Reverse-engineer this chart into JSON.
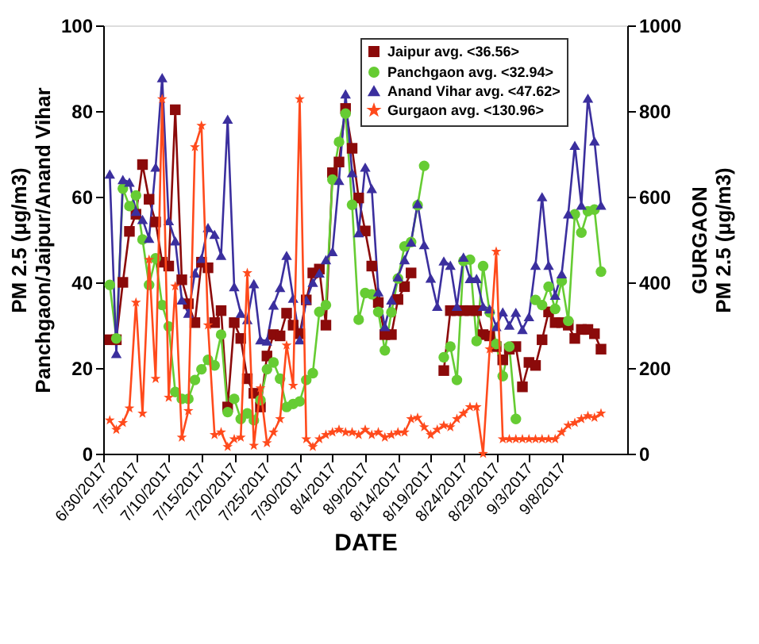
{
  "chart_data": {
    "type": "line",
    "xlabel": "DATE",
    "ylabel": "PM 2.5 (μg/m3)\nPanchgaon/Jaipur/Anand Vihar",
    "y2label": "GURGAON\nPM 2.5 (μg/m3)",
    "x": [
      "2017-07-01",
      "2017-07-02",
      "2017-07-03",
      "2017-07-04",
      "2017-07-05",
      "2017-07-06",
      "2017-07-07",
      "2017-07-08",
      "2017-07-09",
      "2017-07-10",
      "2017-07-11",
      "2017-07-12",
      "2017-07-13",
      "2017-07-14",
      "2017-07-15",
      "2017-07-16",
      "2017-07-17",
      "2017-07-18",
      "2017-07-19",
      "2017-07-20",
      "2017-07-21",
      "2017-07-22",
      "2017-07-23",
      "2017-07-24",
      "2017-07-25",
      "2017-07-26",
      "2017-07-27",
      "2017-07-28",
      "2017-07-29",
      "2017-07-30",
      "2017-07-31",
      "2017-08-01",
      "2017-08-02",
      "2017-08-03",
      "2017-08-04",
      "2017-08-05",
      "2017-08-06",
      "2017-08-07",
      "2017-08-08",
      "2017-08-09",
      "2017-08-10",
      "2017-08-11",
      "2017-08-12",
      "2017-08-13",
      "2017-08-14",
      "2017-08-15",
      "2017-08-16",
      "2017-08-17",
      "2017-08-18",
      "2017-08-19",
      "2017-08-20",
      "2017-08-21",
      "2017-08-22",
      "2017-08-23",
      "2017-08-24",
      "2017-08-25",
      "2017-08-26",
      "2017-08-27",
      "2017-08-28",
      "2017-08-29",
      "2017-08-30",
      "2017-08-31",
      "2017-09-01",
      "2017-09-02",
      "2017-09-03",
      "2017-09-04",
      "2017-09-05",
      "2017-09-06",
      "2017-09-07",
      "2017-09-08",
      "2017-09-09",
      "2017-09-10",
      "2017-09-11",
      "2017-09-12",
      "2017-09-13",
      "2017-09-14"
    ],
    "series": [
      {
        "name": "Jaipur avg. <36.56>",
        "color": "#8b0a0a",
        "marker": "square",
        "values": [
          26.6,
          26.6,
          40,
          51.9,
          55.9,
          67.5,
          59.4,
          54.1,
          44.7,
          43.8,
          80.3,
          40.6,
          35,
          30.6,
          44.7,
          43.4,
          30.6,
          33.4,
          10.9,
          30.6,
          26.9,
          17.5,
          14.1,
          10.9,
          22.8,
          27.8,
          27.5,
          32.8,
          30,
          28,
          35.9,
          42.2,
          43.1,
          30,
          65.6,
          68.1,
          80.6,
          71.3,
          59.7,
          52,
          43.8,
          35.3,
          27.8,
          27.8,
          36,
          39,
          42.2,
          null,
          null,
          null,
          null,
          19.4,
          33.4,
          33.4,
          33.4,
          33.4,
          33.4,
          27.8,
          27.5,
          25,
          21.9,
          24.4,
          25,
          15.6,
          21.3,
          20.6,
          26.6,
          33.1,
          30.6,
          30.6,
          30,
          26.9,
          29,
          29,
          28,
          24.4
        ]
      },
      {
        "name": "Panchgaon avg. <32.94>",
        "color": "#66cc33",
        "marker": "circle",
        "values": [
          39.4,
          26.9,
          61.9,
          57.8,
          60.3,
          50,
          39.4,
          45.6,
          34.7,
          29.7,
          14.4,
          12.8,
          12.8,
          17.2,
          19.7,
          21.9,
          20.6,
          27.8,
          9.7,
          12.8,
          8.1,
          9.4,
          7.8,
          12.5,
          19.7,
          21.3,
          17.5,
          10.9,
          11.6,
          12.2,
          17.2,
          18.8,
          33.1,
          34.7,
          64,
          72.8,
          79.4,
          58.1,
          31.3,
          37.5,
          37.2,
          33.1,
          24.1,
          33,
          40.9,
          48.4,
          49.4,
          58,
          67.2,
          null,
          null,
          22.5,
          25,
          17.2,
          45,
          45.3,
          26.3,
          43.8,
          33,
          25.6,
          18.1,
          25,
          8.1,
          null,
          null,
          35.9,
          34.7,
          39,
          33.8,
          40.3,
          31,
          55.9,
          51.6,
          56.6,
          57,
          42.5
        ]
      },
      {
        "name": "Anand Vihar avg. <47.62>",
        "color": "#3b2f9e",
        "marker": "triangle",
        "values": [
          65.3,
          23.4,
          64,
          63.4,
          56.6,
          54.7,
          50.3,
          66.9,
          87.8,
          54.4,
          49.7,
          35.9,
          32.8,
          42.2,
          45.6,
          52.8,
          51.2,
          46.3,
          78.1,
          39,
          32.8,
          31.3,
          39.7,
          26.6,
          26.3,
          34.7,
          38.8,
          46.3,
          36.3,
          26.6,
          35.9,
          40,
          42.2,
          45.3,
          47.2,
          63.8,
          84,
          65.6,
          51.6,
          66.9,
          61.9,
          37.8,
          29.7,
          35.9,
          41.3,
          45.3,
          49.4,
          58.4,
          48.8,
          41,
          34.4,
          45,
          44,
          34.4,
          45.9,
          40.9,
          40.9,
          34.4,
          33.8,
          29.7,
          33.1,
          30,
          33,
          29,
          32,
          44,
          60,
          44,
          37,
          42,
          56,
          72,
          58,
          83,
          73,
          58
        ]
      },
      {
        "name": "Gurgaon avg. <130.96>",
        "color": "#ff4a1c",
        "marker": "star",
        "axis": "y2",
        "values": [
          78,
          56,
          72,
          106,
          353,
          94,
          453,
          175,
          828,
          131,
          391,
          38,
          100,
          716,
          766,
          300,
          44,
          50,
          16,
          34,
          38,
          422,
          19,
          153,
          25,
          50,
          81,
          253,
          159,
          828,
          34,
          16,
          34,
          44,
          50,
          56,
          50,
          50,
          44,
          56,
          44,
          50,
          38,
          44,
          50,
          50,
          81,
          84,
          62,
          44,
          56,
          66,
          62,
          81,
          94,
          109,
          109,
          0,
          244,
          472,
          34,
          34,
          34,
          34,
          34,
          34,
          34,
          34,
          34,
          50,
          66,
          72,
          81,
          88,
          84,
          94
        ]
      }
    ],
    "xlim": [
      "2017-06-30",
      "2017-09-18"
    ],
    "xticks": [
      {
        "value": "2017-06-30",
        "label": "6/30/2017"
      },
      {
        "value": "2017-07-05",
        "label": "7/5/2017"
      },
      {
        "value": "2017-07-10",
        "label": "7/10/2017"
      },
      {
        "value": "2017-07-15",
        "label": "7/15/2017"
      },
      {
        "value": "2017-07-20",
        "label": "7/20/2017"
      },
      {
        "value": "2017-07-25",
        "label": "7/25/2017"
      },
      {
        "value": "2017-07-30",
        "label": "7/30/2017"
      },
      {
        "value": "2017-08-04",
        "label": "8/4/2017"
      },
      {
        "value": "2017-08-09",
        "label": "8/9/2017"
      },
      {
        "value": "2017-08-14",
        "label": "8/14/2017"
      },
      {
        "value": "2017-08-19",
        "label": "8/19/2017"
      },
      {
        "value": "2017-08-24",
        "label": "8/24/2017"
      },
      {
        "value": "2017-08-29",
        "label": "8/29/2017"
      },
      {
        "value": "2017-09-03",
        "label": "9/3/2017"
      },
      {
        "value": "2017-09-08",
        "label": "9/8/2017"
      }
    ],
    "ylim": [
      0,
      100
    ],
    "yticks": [
      0,
      20,
      40,
      60,
      80,
      100
    ],
    "y2lim": [
      0,
      1000
    ],
    "y2ticks": [
      0,
      200,
      400,
      600,
      800,
      1000
    ],
    "grid": false,
    "legend": "top right",
    "line_style": "solid"
  }
}
